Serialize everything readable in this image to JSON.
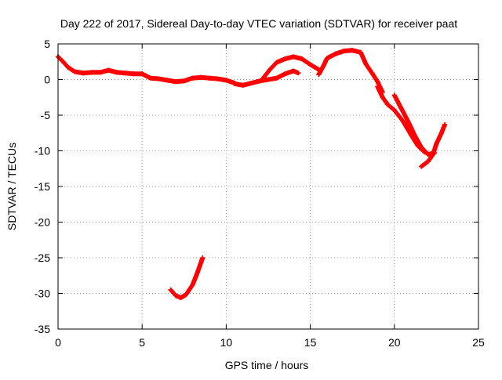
{
  "chart_data": {
    "type": "scatter",
    "title": "Day 222 of 2017, Sidereal Day-to-day VTEC variation (SDTVAR) for receiver paat",
    "xlabel": "GPS time / hours",
    "ylabel": "SDTVAR / TECUs",
    "xlim": [
      0,
      25
    ],
    "ylim": [
      -35,
      5
    ],
    "xticks": [
      0,
      5,
      10,
      15,
      20,
      25
    ],
    "yticks": [
      5,
      0,
      -5,
      -10,
      -15,
      -20,
      -25,
      -30,
      -35
    ],
    "grid": true,
    "marker": "plus",
    "series_color": "#ff0000",
    "series": [
      {
        "name": "main",
        "x": [
          0.0,
          0.3,
          0.6,
          1.0,
          1.5,
          2.0,
          2.5,
          3.0,
          3.5,
          4.0,
          4.5,
          5.0,
          5.5,
          6.0,
          6.5,
          7.0,
          7.5,
          8.0,
          8.5,
          9.0,
          9.5,
          10.0,
          10.5
        ],
        "y": [
          3.2,
          2.5,
          1.7,
          1.1,
          0.9,
          1.0,
          1.0,
          1.3,
          1.0,
          0.9,
          0.8,
          0.8,
          0.2,
          0.1,
          -0.1,
          -0.3,
          -0.2,
          0.2,
          0.3,
          0.2,
          0.1,
          -0.1,
          -0.5
        ]
      },
      {
        "name": "segment-2",
        "x": [
          10.5,
          11.0,
          11.5,
          12.0,
          12.5,
          13.0,
          13.5,
          14.0,
          14.3
        ],
        "y": [
          -0.6,
          -0.8,
          -0.5,
          -0.2,
          0.0,
          0.2,
          0.8,
          1.2,
          0.9
        ]
      },
      {
        "name": "segment-3",
        "x": [
          12.2,
          12.6,
          13.0,
          13.5,
          14.0,
          14.5,
          15.0,
          15.5
        ],
        "y": [
          0.2,
          1.4,
          2.4,
          2.9,
          3.2,
          2.9,
          2.1,
          1.4
        ]
      },
      {
        "name": "segment-4",
        "x": [
          15.5,
          15.8,
          16.0,
          16.5,
          17.0,
          17.5,
          18.0,
          18.3,
          18.7,
          19.0,
          19.3
        ],
        "y": [
          0.7,
          2.0,
          3.0,
          3.6,
          4.0,
          4.1,
          3.8,
          2.2,
          0.8,
          -0.3,
          -1.8
        ]
      },
      {
        "name": "segment-5",
        "x": [
          19.0,
          19.3,
          19.6,
          20.0,
          20.5,
          21.0,
          21.4,
          21.8
        ],
        "y": [
          -1.0,
          -2.5,
          -3.5,
          -4.3,
          -5.8,
          -7.8,
          -9.3,
          -10.2
        ]
      },
      {
        "name": "segment-6",
        "x": [
          20.0,
          20.4,
          20.8,
          21.2,
          21.6,
          22.0,
          22.4
        ],
        "y": [
          -2.2,
          -4.0,
          -5.8,
          -7.8,
          -9.5,
          -10.5,
          -10.3
        ]
      },
      {
        "name": "segment-7",
        "x": [
          21.6,
          22.0,
          22.3,
          22.5,
          22.8,
          23.0
        ],
        "y": [
          -12.2,
          -11.5,
          -10.5,
          -9.0,
          -7.5,
          -6.3
        ]
      },
      {
        "name": "segment-8",
        "x": [
          6.7,
          7.0,
          7.3,
          7.6,
          8.0,
          8.3,
          8.6
        ],
        "y": [
          -29.5,
          -30.3,
          -30.6,
          -30.2,
          -28.8,
          -27.0,
          -25.0
        ]
      }
    ]
  }
}
